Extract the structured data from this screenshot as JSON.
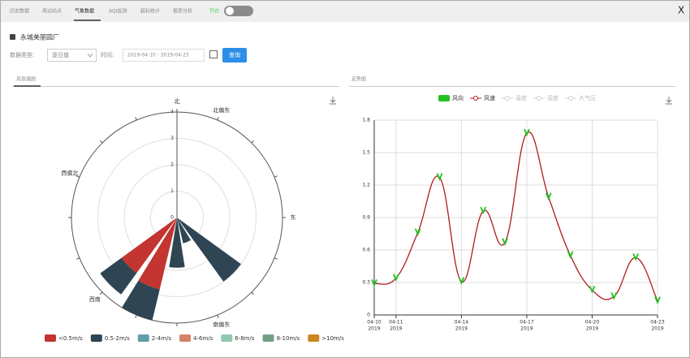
{
  "nav": {
    "tabs": [
      "历史数据",
      "周边站点",
      "气象数据",
      "AQI监测",
      "超标统计",
      "报表分析"
    ],
    "toggle": "开启",
    "close": "X"
  },
  "station": "永城美丽园厂",
  "form": {
    "type_label": "数据类型:",
    "type_value": "逐日值",
    "time_label": "时间:",
    "time_value": "2019-04-10 - 2019-04-23",
    "button": "查询"
  },
  "left_tab": "风玫瑰图",
  "right_tab": "走势图",
  "chart_data": [
    {
      "type": "polar-bar",
      "categories": [
        "北",
        "北偏东",
        null,
        null,
        "东",
        null,
        null,
        "南偏东",
        null,
        null,
        "西南",
        null,
        null,
        "西偏北",
        null,
        null
      ],
      "rlim": [
        0,
        4
      ],
      "rticks": [
        0,
        1,
        2,
        3,
        4
      ],
      "series": [
        {
          "name": "<0.5m/s",
          "color": "#c23531",
          "values": [
            0,
            0,
            0,
            0,
            0,
            0,
            0,
            0,
            0,
            2.8,
            2.6,
            0,
            0,
            0,
            0,
            0
          ]
        },
        {
          "name": "0.5-2m/s",
          "color": "#2f4554",
          "values": [
            0,
            0,
            0,
            0,
            0,
            0,
            3.0,
            1.0,
            1.9,
            1.2,
            1.0,
            0,
            0,
            0,
            0,
            0
          ]
        },
        {
          "name": "2-4m/s",
          "color": "#61a0a8",
          "values": [
            0,
            0,
            0,
            0,
            0,
            0,
            0,
            0,
            0,
            0,
            0,
            0,
            0,
            0,
            0,
            0
          ]
        },
        {
          "name": "4-6m/s",
          "color": "#d48265",
          "values": [
            0,
            0,
            0,
            0,
            0,
            0,
            0,
            0,
            0,
            0,
            0,
            0,
            0,
            0,
            0,
            0
          ]
        },
        {
          "name": "6-8m/s",
          "color": "#91c7ae",
          "values": [
            0,
            0,
            0,
            0,
            0,
            0,
            0,
            0,
            0,
            0,
            0,
            0,
            0,
            0,
            0,
            0
          ]
        },
        {
          "name": "8-10m/s",
          "color": "#749f83",
          "values": [
            0,
            0,
            0,
            0,
            0,
            0,
            0,
            0,
            0,
            0,
            0,
            0,
            0,
            0,
            0,
            0
          ]
        },
        {
          "name": ">10m/s",
          "color": "#ca8622",
          "values": [
            0,
            0,
            0,
            0,
            0,
            0,
            0,
            0,
            0,
            0,
            0,
            0,
            0,
            0,
            0,
            0
          ]
        }
      ]
    },
    {
      "type": "line",
      "x": [
        "2019-04-10",
        "2019-04-11",
        "2019-04-12",
        "2019-04-13",
        "2019-04-14",
        "2019-04-15",
        "2019-04-16",
        "2019-04-17",
        "2019-04-18",
        "2019-04-19",
        "2019-04-20",
        "2019-04-21",
        "2019-04-22",
        "2019-04-23"
      ],
      "xlim": [
        "2019-04-10",
        "2019-04-23"
      ],
      "xticks": [
        {
          "value": "2019-04-10",
          "label": "04-10"
        },
        {
          "value": "2019-04-11",
          "label": "04-11"
        },
        {
          "value": "2019-04-14",
          "label": "04-14"
        },
        {
          "value": "2019-04-17",
          "label": "04-17"
        },
        {
          "value": "2019-04-20",
          "label": "04-20"
        },
        {
          "value": "2019-04-23",
          "label": "04-23"
        }
      ],
      "xtick_year": "2019",
      "ylim": [
        0,
        1.8
      ],
      "yticks": [
        0,
        0.3,
        0.6,
        0.9,
        1.2,
        1.5,
        1.8
      ],
      "grid": true,
      "wind_direction": {
        "name": "风向",
        "color": "#22c322"
      },
      "series": [
        {
          "name": "风速",
          "color": "#b01c1c",
          "values": [
            0.29,
            0.34,
            0.76,
            1.27,
            0.31,
            0.96,
            0.67,
            1.68,
            1.09,
            0.55,
            0.23,
            0.17,
            0.53,
            0.13
          ]
        }
      ],
      "hidden_series": [
        "温度",
        "湿度",
        "大气压"
      ]
    }
  ]
}
